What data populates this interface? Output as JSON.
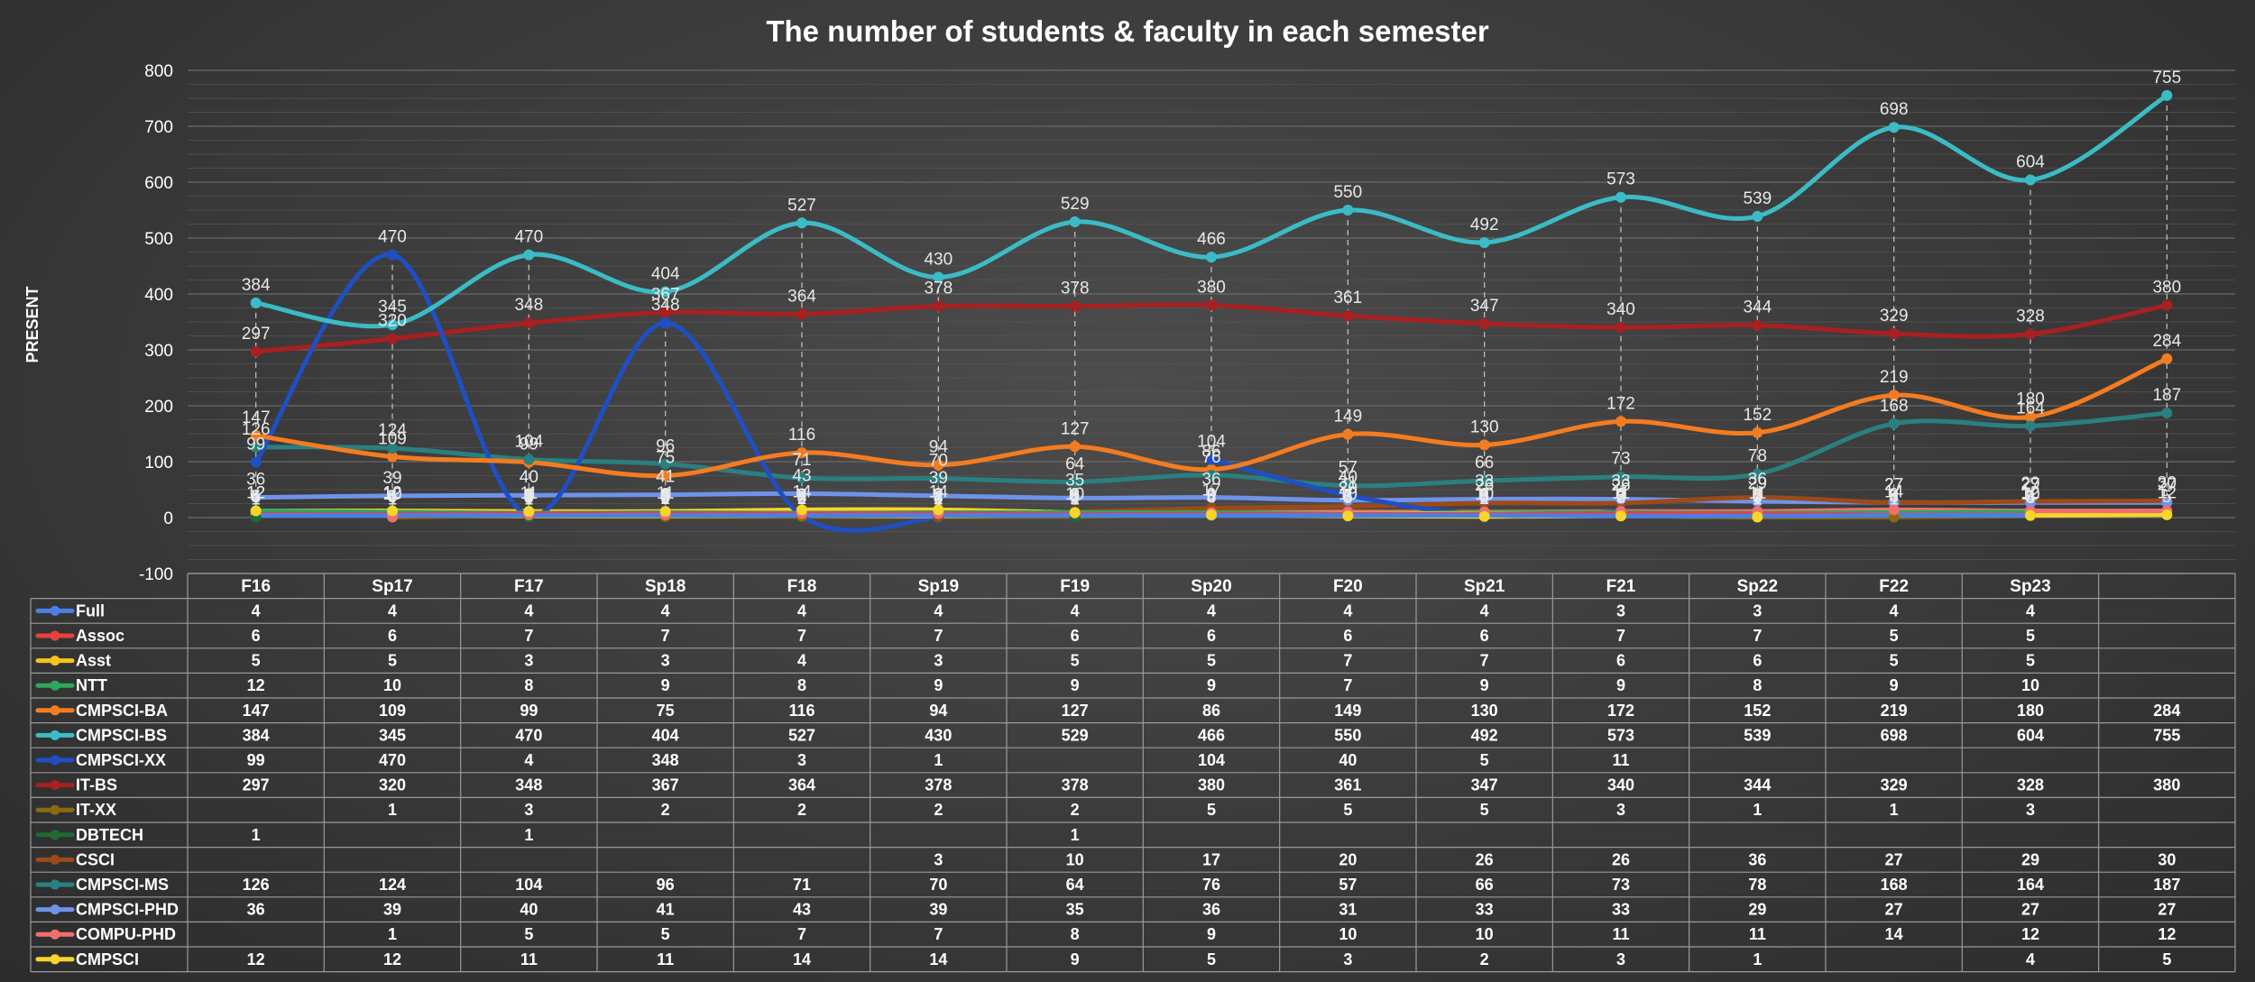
{
  "chart_data": {
    "type": "line",
    "title": "The number of students & faculty in each semester",
    "ylabel": "PRESENT",
    "ylim": [
      -100,
      800
    ],
    "yticks": [
      -100,
      0,
      100,
      200,
      300,
      400,
      500,
      600,
      700,
      800
    ],
    "grid": true,
    "legend": "data-table",
    "categories": [
      "F16",
      "Sp17",
      "F17",
      "Sp18",
      "F18",
      "Sp19",
      "F19",
      "Sp20",
      "F20",
      "Sp21",
      "F21",
      "Sp22",
      "F22",
      "Sp23",
      ""
    ],
    "series": [
      {
        "name": "Full",
        "color": "#4a7fe8",
        "values": [
          4,
          4,
          4,
          4,
          4,
          4,
          4,
          4,
          4,
          4,
          3,
          3,
          4,
          4,
          null
        ]
      },
      {
        "name": "Assoc",
        "color": "#e8413a",
        "values": [
          6,
          6,
          7,
          7,
          7,
          7,
          6,
          6,
          6,
          6,
          7,
          7,
          5,
          5,
          null
        ]
      },
      {
        "name": "Asst",
        "color": "#f5c518",
        "values": [
          5,
          5,
          3,
          3,
          4,
          3,
          5,
          5,
          7,
          7,
          6,
          6,
          5,
          5,
          null
        ]
      },
      {
        "name": "NTT",
        "color": "#2ea85a",
        "values": [
          12,
          10,
          8,
          9,
          8,
          9,
          9,
          9,
          7,
          9,
          9,
          8,
          9,
          10,
          null
        ]
      },
      {
        "name": "CMPSCI-BA",
        "color": "#f47c20",
        "values": [
          147,
          109,
          99,
          75,
          116,
          94,
          127,
          86,
          149,
          130,
          172,
          152,
          219,
          180,
          284
        ]
      },
      {
        "name": "CMPSCI-BS",
        "color": "#3bbcc4",
        "values": [
          384,
          345,
          470,
          404,
          527,
          430,
          529,
          466,
          550,
          492,
          573,
          539,
          698,
          604,
          755
        ]
      },
      {
        "name": "CMPSCI-XX",
        "color": "#1f4fc4",
        "values": [
          99,
          470,
          4,
          348,
          3,
          1,
          null,
          104,
          40,
          5,
          11,
          null,
          null,
          null,
          null
        ]
      },
      {
        "name": "IT-BS",
        "color": "#a82020",
        "values": [
          297,
          320,
          348,
          367,
          364,
          378,
          378,
          380,
          361,
          347,
          340,
          344,
          329,
          328,
          380
        ]
      },
      {
        "name": "IT-XX",
        "color": "#8a6a10",
        "values": [
          null,
          1,
          3,
          2,
          2,
          2,
          2,
          5,
          5,
          5,
          3,
          1,
          1,
          3,
          null
        ]
      },
      {
        "name": "DBTECH",
        "color": "#1f6a35",
        "values": [
          1,
          null,
          1,
          null,
          null,
          null,
          1,
          null,
          null,
          null,
          null,
          null,
          null,
          null,
          null
        ]
      },
      {
        "name": "CSCI",
        "color": "#9c4a18",
        "values": [
          null,
          null,
          null,
          null,
          null,
          3,
          10,
          17,
          20,
          26,
          26,
          36,
          27,
          29,
          30
        ]
      },
      {
        "name": "CMPSCI-MS",
        "color": "#2a8080",
        "values": [
          126,
          124,
          104,
          96,
          71,
          70,
          64,
          76,
          57,
          66,
          73,
          78,
          168,
          164,
          187
        ]
      },
      {
        "name": "CMPSCI-PHD",
        "color": "#6f93ea",
        "values": [
          36,
          39,
          40,
          41,
          43,
          39,
          35,
          36,
          31,
          33,
          33,
          29,
          27,
          27,
          27
        ]
      },
      {
        "name": "COMPU-PHD",
        "color": "#ef6f6f",
        "values": [
          null,
          1,
          5,
          5,
          7,
          7,
          8,
          9,
          10,
          10,
          11,
          11,
          14,
          12,
          12
        ]
      },
      {
        "name": "CMPSCI",
        "color": "#f7d52a",
        "values": [
          12,
          12,
          11,
          11,
          14,
          14,
          9,
          5,
          3,
          2,
          3,
          1,
          null,
          4,
          5
        ]
      }
    ]
  }
}
